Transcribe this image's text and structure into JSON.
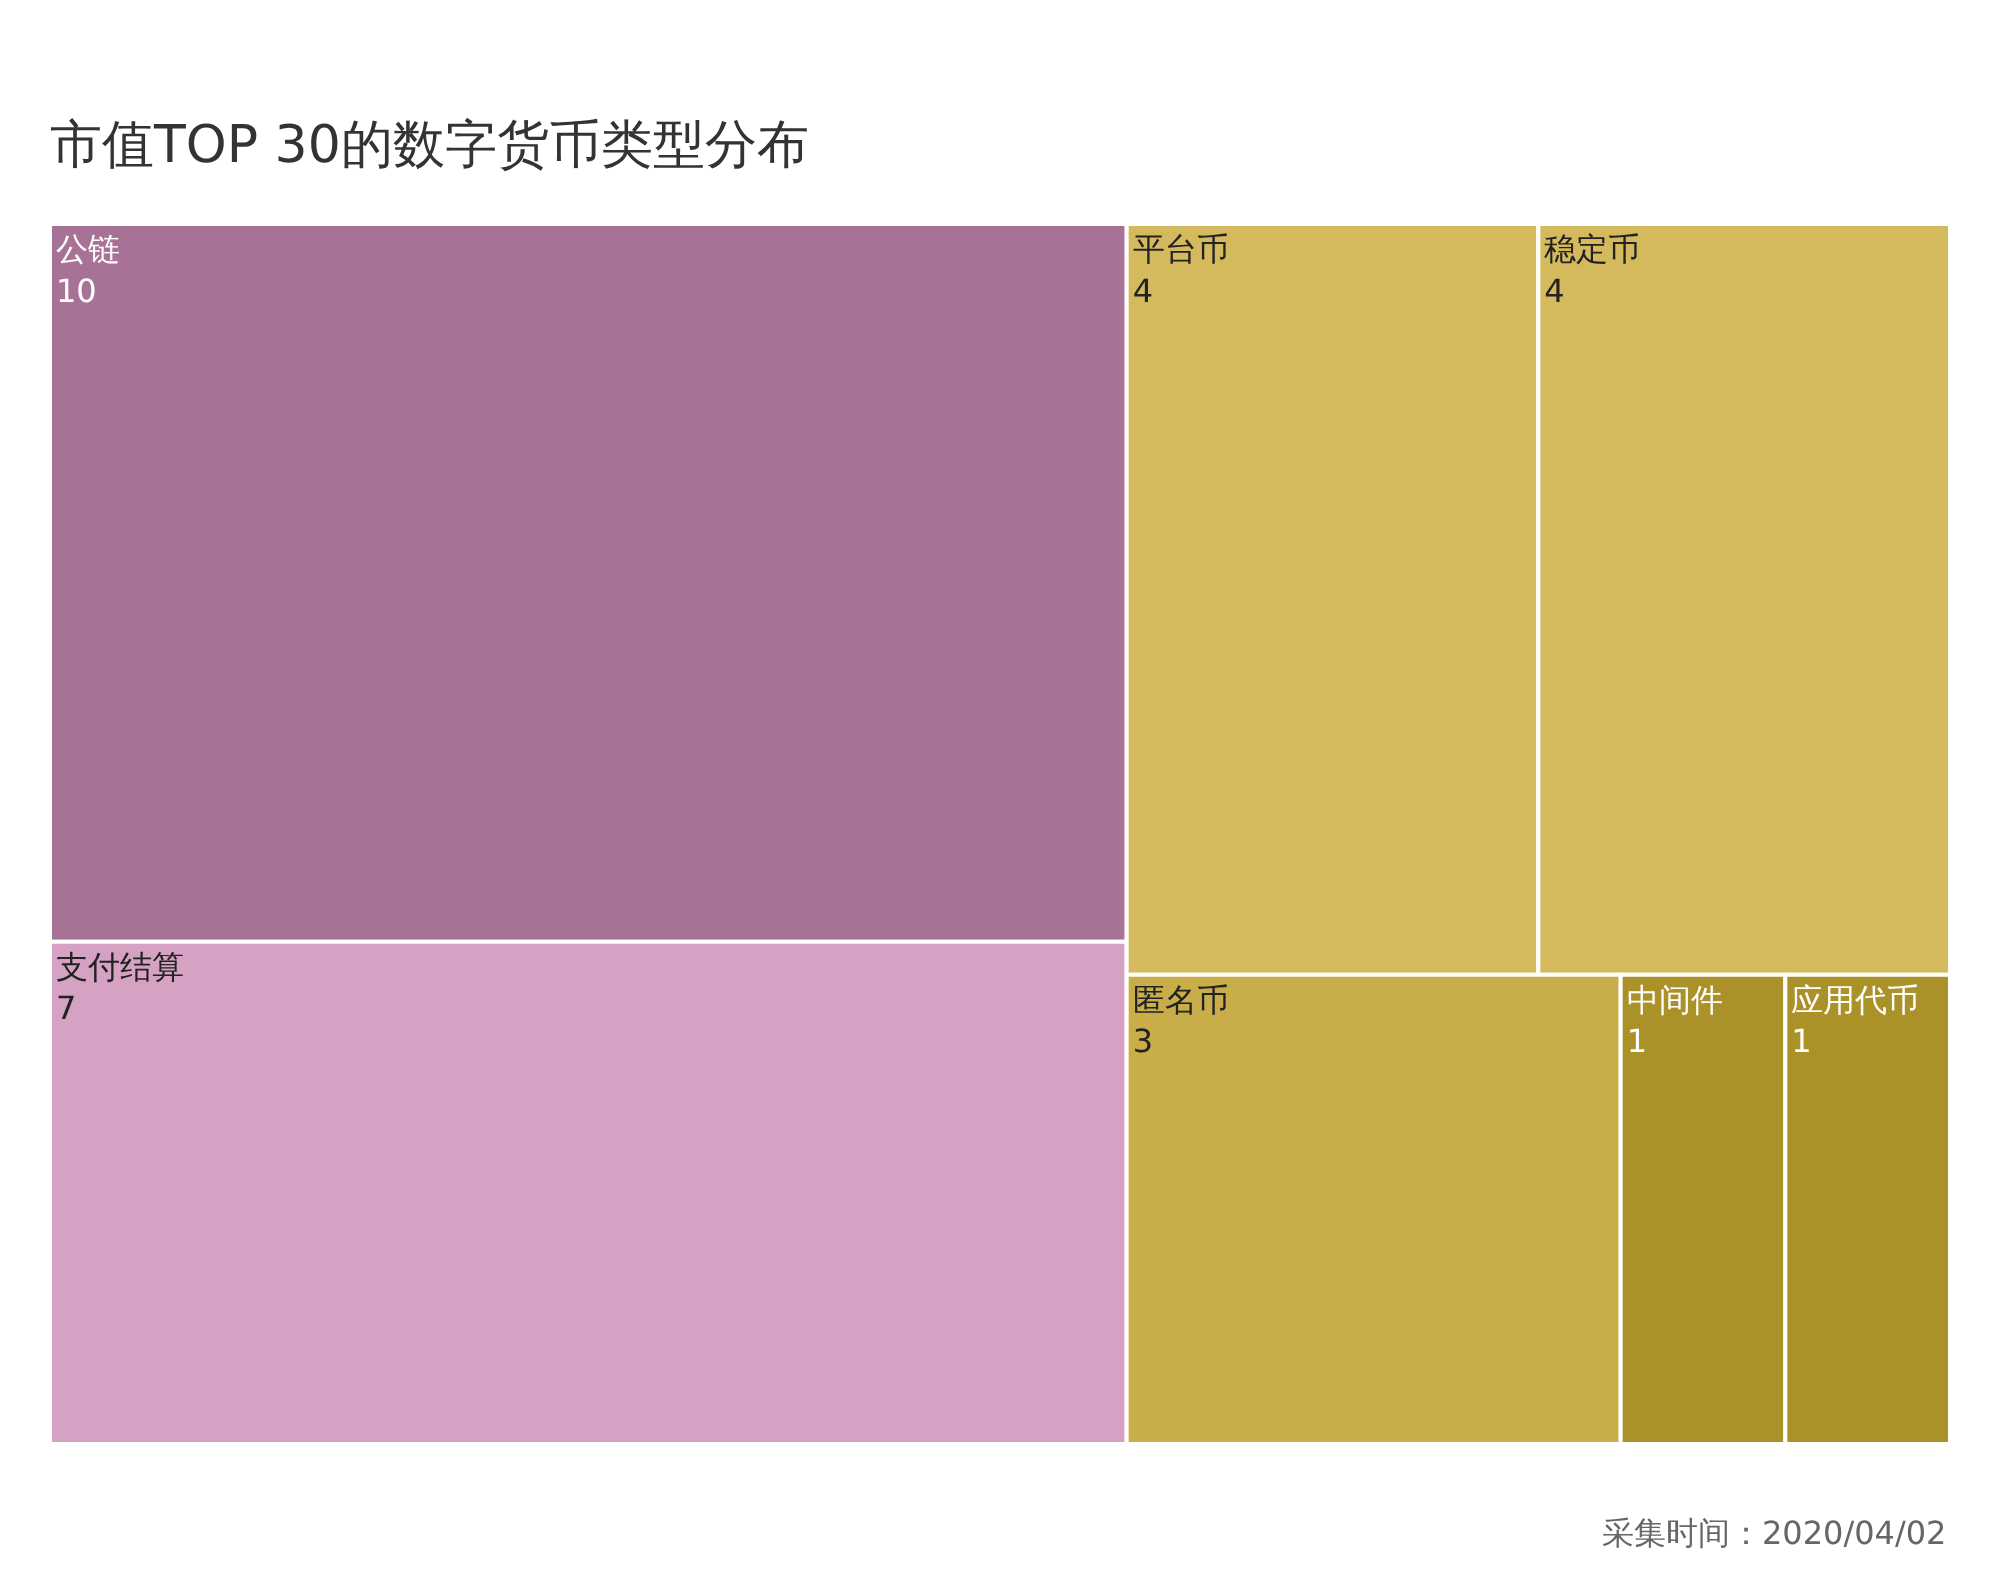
{
  "chart_data": {
    "type": "other",
    "title": "市值TOP 30的数字货币类型分布",
    "categories": [
      "公链",
      "支付结算",
      "平台币",
      "稳定币",
      "匿名币",
      "中间件",
      "应用代币"
    ],
    "values": [
      10,
      7,
      4,
      4,
      3,
      1,
      1
    ],
    "colors": [
      "#a87296",
      "#d5a2c4",
      "#d4b95d",
      "#d4b95d",
      "#c9ad48",
      "#ab9228",
      "#ab9228"
    ],
    "data_labels": true,
    "annotations": [
      "采集时间：2020/04/02"
    ]
  }
}
